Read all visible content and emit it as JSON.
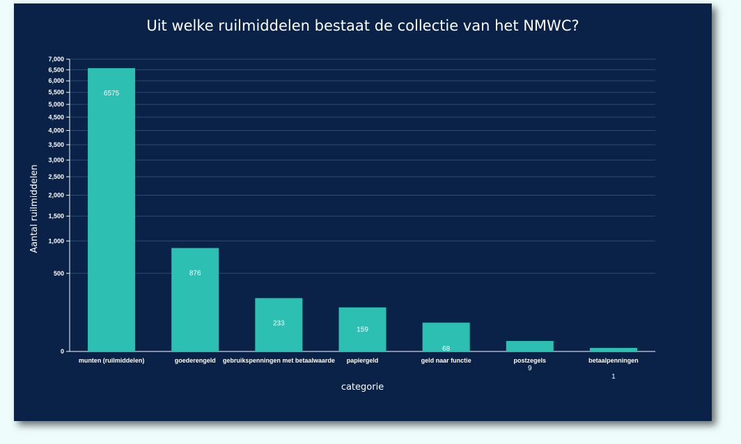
{
  "chart_data": {
    "type": "bar",
    "title": "Uit welke ruilmiddelen bestaat de collectie van het NMWC?",
    "xlabel": "categorie",
    "ylabel": "Aantal ruilmiddelen",
    "categories": [
      "munten (ruilmiddelen)",
      "goederengeld",
      "gebruikspenningen met betaalwaarde",
      "papiergeld",
      "geld naar functie",
      "postzegels",
      "betaalpenningen"
    ],
    "values": [
      6575,
      876,
      233,
      159,
      68,
      9,
      1
    ],
    "value_labels": [
      "6575",
      "876",
      "233",
      "159",
      "68",
      "9",
      "1"
    ],
    "y_ticks": [
      0,
      500,
      1000,
      1500,
      2000,
      2500,
      3000,
      3500,
      4000,
      4500,
      5000,
      5500,
      6000,
      6500,
      7000
    ],
    "y_tick_labels": [
      "0",
      "500",
      "1,000",
      "1,500",
      "2,000",
      "2,500",
      "3,000",
      "3,500",
      "4,000",
      "4,500",
      "5,000",
      "5,500",
      "6,000",
      "6,500",
      "7,000"
    ],
    "ylim": [
      0,
      7000
    ],
    "y_scale": "sqrt",
    "grid": true,
    "colors": {
      "bar": "#2ebfb3",
      "background": "#0a2247",
      "grid": "#2e4a70",
      "text": "#ffffff"
    }
  }
}
